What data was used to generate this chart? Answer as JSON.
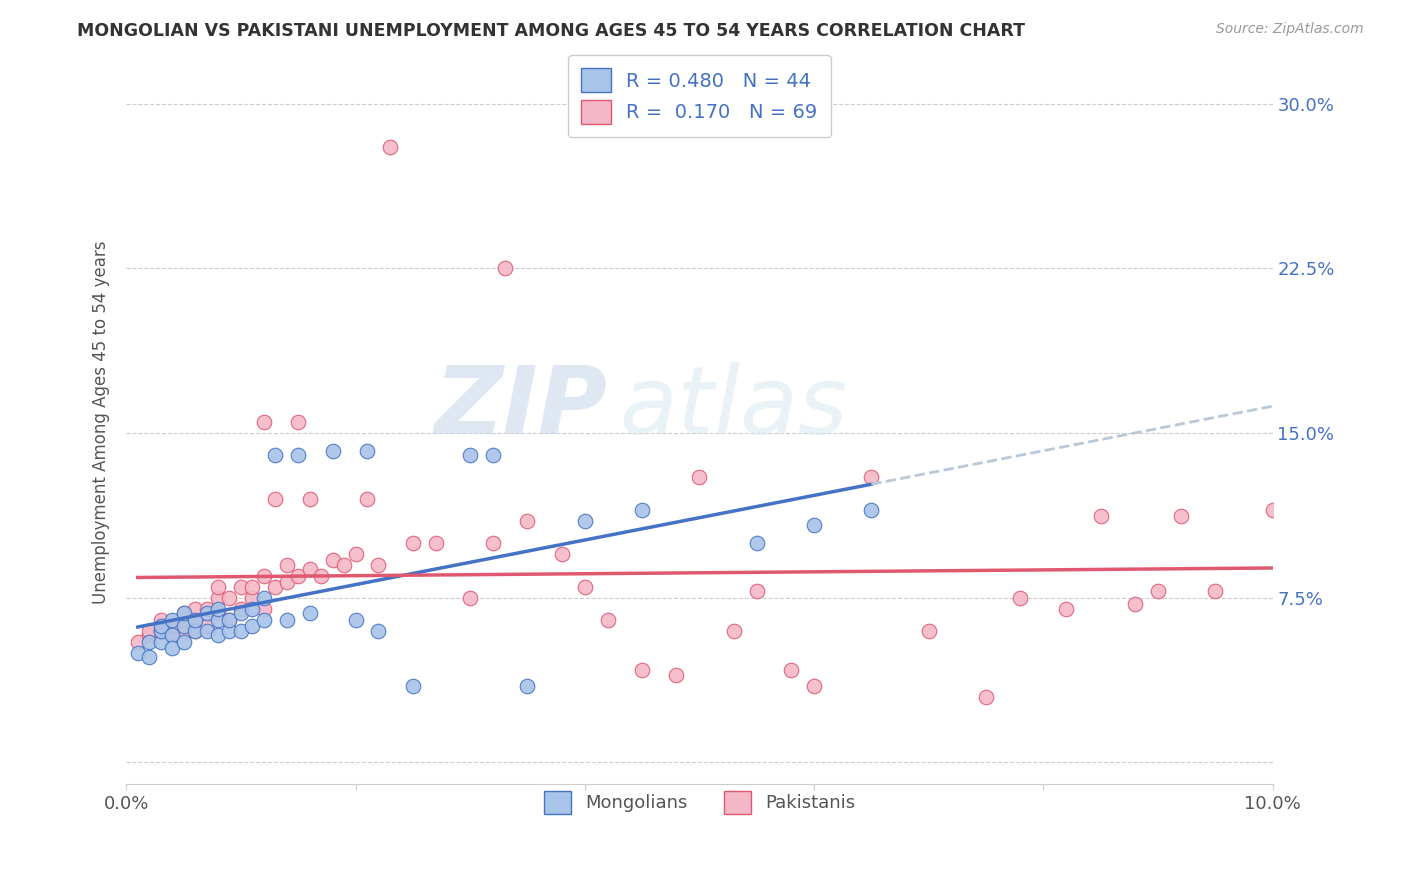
{
  "title": "MONGOLIAN VS PAKISTANI UNEMPLOYMENT AMONG AGES 45 TO 54 YEARS CORRELATION CHART",
  "source": "Source: ZipAtlas.com",
  "ylabel": "Unemployment Among Ages 45 to 54 years",
  "xlim": [
    0.0,
    0.1
  ],
  "ylim": [
    -0.01,
    0.32
  ],
  "xticks": [
    0.0,
    0.02,
    0.04,
    0.06,
    0.08,
    0.1
  ],
  "xticklabels": [
    "0.0%",
    "",
    "",
    "",
    "",
    "10.0%"
  ],
  "yticks": [
    0.0,
    0.075,
    0.15,
    0.225,
    0.3
  ],
  "ylabels_right": [
    "",
    "7.5%",
    "15.0%",
    "22.5%",
    "30.0%"
  ],
  "mongolian_color": "#a8c4e8",
  "pakistani_color": "#f5b8c8",
  "mongolian_line_color": "#4472c4",
  "pakistani_line_color": "#e05870",
  "trendline_extend_color": "#b8c8d8",
  "legend_mongolian_label": "Mongolians",
  "legend_pakistani_label": "Pakistanis",
  "mongolian_R": "0.480",
  "mongolian_N": "44",
  "pakistani_R": "0.170",
  "pakistani_N": "69",
  "watermark_zip": "ZIP",
  "watermark_atlas": "atlas",
  "mongolian_x": [
    0.001,
    0.002,
    0.002,
    0.003,
    0.003,
    0.003,
    0.004,
    0.004,
    0.004,
    0.005,
    0.005,
    0.005,
    0.006,
    0.006,
    0.007,
    0.007,
    0.008,
    0.008,
    0.008,
    0.009,
    0.009,
    0.01,
    0.01,
    0.011,
    0.011,
    0.012,
    0.012,
    0.013,
    0.014,
    0.015,
    0.016,
    0.018,
    0.02,
    0.021,
    0.022,
    0.025,
    0.03,
    0.032,
    0.035,
    0.04,
    0.045,
    0.055,
    0.06,
    0.065
  ],
  "mongolian_y": [
    0.05,
    0.055,
    0.048,
    0.055,
    0.06,
    0.062,
    0.058,
    0.052,
    0.065,
    0.062,
    0.068,
    0.055,
    0.06,
    0.065,
    0.06,
    0.068,
    0.065,
    0.058,
    0.07,
    0.06,
    0.065,
    0.068,
    0.06,
    0.062,
    0.07,
    0.065,
    0.075,
    0.14,
    0.065,
    0.14,
    0.068,
    0.142,
    0.065,
    0.142,
    0.06,
    0.035,
    0.14,
    0.14,
    0.035,
    0.11,
    0.115,
    0.1,
    0.108,
    0.115
  ],
  "pakistani_x": [
    0.001,
    0.002,
    0.002,
    0.003,
    0.003,
    0.004,
    0.004,
    0.005,
    0.005,
    0.005,
    0.006,
    0.006,
    0.006,
    0.007,
    0.007,
    0.008,
    0.008,
    0.008,
    0.009,
    0.009,
    0.01,
    0.01,
    0.011,
    0.011,
    0.012,
    0.012,
    0.012,
    0.013,
    0.013,
    0.014,
    0.014,
    0.015,
    0.015,
    0.016,
    0.016,
    0.017,
    0.018,
    0.019,
    0.02,
    0.021,
    0.022,
    0.023,
    0.025,
    0.027,
    0.03,
    0.032,
    0.033,
    0.035,
    0.038,
    0.04,
    0.042,
    0.045,
    0.048,
    0.05,
    0.053,
    0.055,
    0.058,
    0.06,
    0.065,
    0.07,
    0.075,
    0.078,
    0.082,
    0.085,
    0.088,
    0.09,
    0.092,
    0.095,
    0.1
  ],
  "pakistani_y": [
    0.055,
    0.058,
    0.06,
    0.06,
    0.065,
    0.058,
    0.062,
    0.06,
    0.065,
    0.068,
    0.06,
    0.065,
    0.07,
    0.062,
    0.07,
    0.068,
    0.075,
    0.08,
    0.065,
    0.075,
    0.07,
    0.08,
    0.075,
    0.08,
    0.07,
    0.085,
    0.155,
    0.08,
    0.12,
    0.082,
    0.09,
    0.085,
    0.155,
    0.088,
    0.12,
    0.085,
    0.092,
    0.09,
    0.095,
    0.12,
    0.09,
    0.28,
    0.1,
    0.1,
    0.075,
    0.1,
    0.225,
    0.11,
    0.095,
    0.08,
    0.065,
    0.042,
    0.04,
    0.13,
    0.06,
    0.078,
    0.042,
    0.035,
    0.13,
    0.06,
    0.03,
    0.075,
    0.07,
    0.112,
    0.072,
    0.078,
    0.112,
    0.078,
    0.115
  ]
}
